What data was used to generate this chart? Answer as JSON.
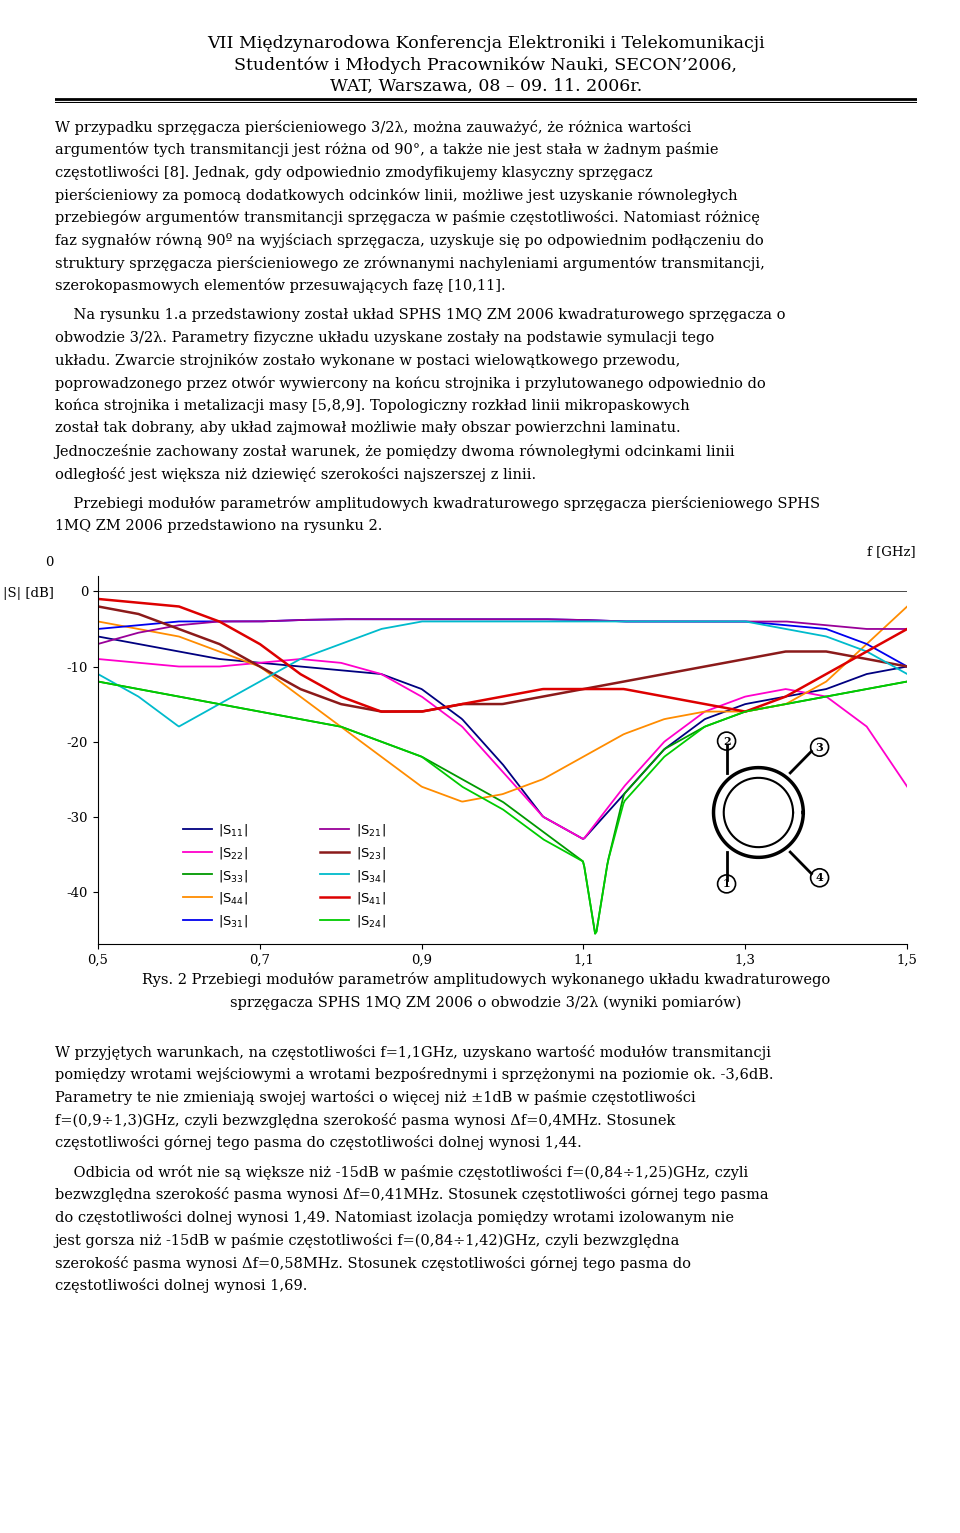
{
  "title_line1": "VII Międzynarodowa Konferencja Elektroniki i Telekomunikacji",
  "title_line2": "Studentów i Młodych Pracowników Nauki, SECON’2006,",
  "title_line3": "WAT, Warszawa, 08 – 09. 11. 2006r.",
  "paragraph1": "W przypadku sprzęgacza pierścieniowego 3/2λ, można zauważyć, że różnica wartości argumentów tych transmitancji jest różna od 90°, a także nie jest stała w żadnym paśmie częstotliwości [8]. Jednak, gdy odpowiednio zmodyfikujemy klasyczny sprzęgacz pierścieniowy za pomocą dodatkowych odcinków linii, możliwe jest uzyskanie równoległych przebiegów argumentów transmitancji sprzęgacza w paśmie częstotliwości. Natomiast różnicę faz sygnałów równą 90º na wyjściach sprzęgacza, uzyskuje się po odpowiednim podłączeniu do struktury sprzęgacza pierścieniowego ze zrównanymi nachyleniami argumentów transmitancji, szerokopasmowych elementów przesuwających fazę [10,11].",
  "paragraph2": "Na rysunku 1.a przedstawiony został układ SPHS 1MQ ZM 2006 kwadraturowego sprzęgacza o obwodzie 3/2λ. Parametry fizyczne układu uzyskane zostały na podstawie symulacji tego układu. Zwarcie strojników zostało wykonane w postaci wielowątkowego przewodu, poprowadzonego przez otwór wywiercony na końcu strojnika i przylutowanego odpowiednio do końca strojnika i metalizacji masy [5,8,9]. Topologiczny rozkład linii mikropaskowych został tak dobrany, aby układ zajmował możliwie mały obszar powierzchni laminatu. Jednocześnie zachowany został warunek, że pomiędzy dwoma równoległymi odcinkami linii odległość jest większa niż dziewięć szerokości najszerszej z linii.",
  "paragraph3": "Przebiegi modułów parametrów amplitudowych kwadraturowego sprzęgacza pierścieniowego SPHS 1MQ ZM 2006 przedstawiono na rysunku 2.",
  "paragraph4": "W przyjętych warunkach, na częstotliwości f=1,1GHz, uzyskano wartość modułów transmitancji pomiędzy wrotami wejściowymi a wrotami bezpośrednymi i sprzężonymi na poziomie ok. -3,6dB. Parametry te nie zmieniają swojej wartości o więcej niż ±1dB w paśmie częstotliwości f=(0,9÷1,3)GHz, czyli bezwzględna szerokość pasma wynosi Δf=0,4MHz. Stosunek częstotliwości górnej tego pasma do częstotliwości dolnej wynosi 1,44.",
  "paragraph5": "Odbicia od wrót nie są większe niż -15dB w paśmie częstotliwości f=(0,84÷1,25)GHz, czyli bezwzględna szerokość pasma wynosi Δf=0,41MHz. Stosunek częstotliwości górnej tego pasma do częstotliwości dolnej wynosi 1,49. Natomiast izolacja pomiędzy wrotami izolowanym nie jest gorsza niż -15dB w paśmie częstotliwości f=(0,84÷1,42)GHz, czyli bezwzględna szerokość pasma wynosi Δf=0,58MHz. Stosunek częstotliwości górnej tego pasma do częstotliwości dolnej wynosi 1,69.",
  "fig_caption_line1": "Rys. 2 Przebiegi modułów parametrów amplitudowych wykonanego układu kwadraturowego",
  "fig_caption_line2": "sprzęgacza SPHS 1MQ ZM 2006 o obwodzie 3/2λ (wyniki pomiarów)",
  "xlim": [
    0.5,
    1.5
  ],
  "ylim": [
    -47,
    2
  ],
  "xticks": [
    0.5,
    0.7,
    0.9,
    1.1,
    1.3,
    1.5
  ],
  "yticks": [
    0,
    -10,
    -20,
    -30,
    -40
  ],
  "xlabel": "f [GHz]",
  "ylabel": "|S| [dB]",
  "background_color": "#ffffff",
  "text_color": "#000000",
  "body_fontsize": 10.5,
  "title_fontsize": 12.5,
  "caption_fontsize": 10.5
}
